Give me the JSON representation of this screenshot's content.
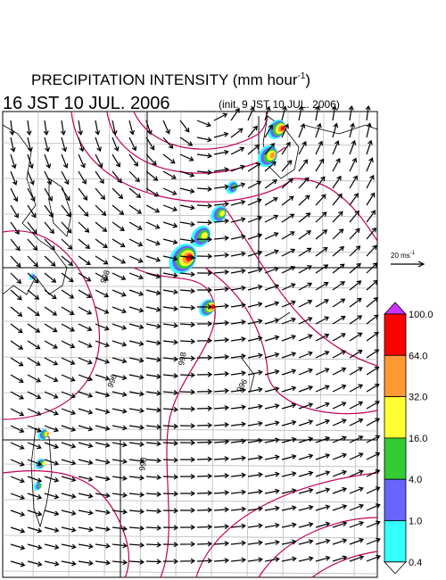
{
  "header": {
    "title": "PRECIPITATION INTENSITY (mm hour",
    "title_superscript": "-1",
    "title_end": ")",
    "valid_time": "16 JST 10 JUL. 2006",
    "init_time": "(init. 9 JST 10 JUL. 2006)"
  },
  "vector_scale": {
    "label": "20 ms",
    "superscript": "-1"
  },
  "colorbar": {
    "levels": [
      "100.0",
      "64.0",
      "32.0",
      "16.0",
      "4.0",
      "1.0",
      "0.4"
    ],
    "colors": [
      "#ff0000",
      "#ff9933",
      "#ffff33",
      "#33cc33",
      "#6666ff",
      "#33ffff"
    ],
    "over_color": "#cc33ff",
    "under_color": "#ffffff"
  },
  "map": {
    "contour_labels": [
      "998",
      "996",
      "998",
      "998",
      "996"
    ]
  }
}
